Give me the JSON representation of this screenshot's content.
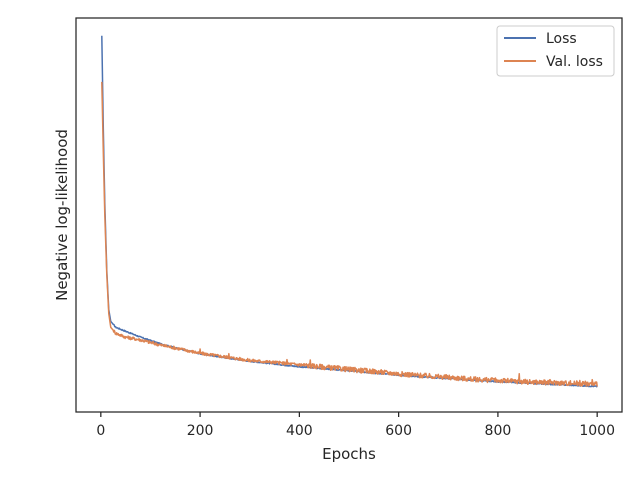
{
  "chart_data": {
    "type": "line",
    "title": "",
    "xlabel": "Epochs",
    "ylabel": "Negative log-likelihood",
    "xlim": [
      -50,
      1050
    ],
    "ylim": [
      0.0,
      1.0
    ],
    "y_tick_labels_shown": false,
    "x_ticks": [
      0,
      200,
      400,
      600,
      800,
      1000
    ],
    "grid": false,
    "legend_position": "top-right",
    "series": [
      {
        "name": "Loss",
        "color": "#4c72b0",
        "points": [
          [
            2,
            0.955
          ],
          [
            5,
            0.72
          ],
          [
            8,
            0.53
          ],
          [
            12,
            0.36
          ],
          [
            16,
            0.26
          ],
          [
            20,
            0.23
          ],
          [
            30,
            0.215
          ],
          [
            50,
            0.205
          ],
          [
            80,
            0.19
          ],
          [
            120,
            0.173
          ],
          [
            160,
            0.16
          ],
          [
            200,
            0.148
          ],
          [
            250,
            0.138
          ],
          [
            300,
            0.129
          ],
          [
            350,
            0.122
          ],
          [
            400,
            0.115
          ],
          [
            450,
            0.11
          ],
          [
            500,
            0.105
          ],
          [
            550,
            0.099
          ],
          [
            600,
            0.094
          ],
          [
            650,
            0.089
          ],
          [
            700,
            0.085
          ],
          [
            750,
            0.081
          ],
          [
            800,
            0.077
          ],
          [
            850,
            0.074
          ],
          [
            900,
            0.071
          ],
          [
            950,
            0.068
          ],
          [
            1000,
            0.065
          ]
        ],
        "spikes": []
      },
      {
        "name": "Val. loss",
        "color": "#dd8452",
        "points": [
          [
            2,
            0.838
          ],
          [
            5,
            0.66
          ],
          [
            8,
            0.5
          ],
          [
            12,
            0.35
          ],
          [
            16,
            0.25
          ],
          [
            20,
            0.215
          ],
          [
            30,
            0.2
          ],
          [
            50,
            0.19
          ],
          [
            80,
            0.183
          ],
          [
            120,
            0.17
          ],
          [
            160,
            0.16
          ],
          [
            200,
            0.149
          ],
          [
            250,
            0.14
          ],
          [
            300,
            0.131
          ],
          [
            350,
            0.126
          ],
          [
            400,
            0.12
          ],
          [
            450,
            0.114
          ],
          [
            500,
            0.108
          ],
          [
            550,
            0.103
          ],
          [
            600,
            0.097
          ],
          [
            650,
            0.092
          ],
          [
            700,
            0.088
          ],
          [
            750,
            0.083
          ],
          [
            800,
            0.08
          ],
          [
            850,
            0.077
          ],
          [
            900,
            0.075
          ],
          [
            950,
            0.073
          ],
          [
            1000,
            0.071
          ]
        ],
        "spikes": [
          [
            200,
            0.16
          ],
          [
            258,
            0.148
          ],
          [
            375,
            0.133
          ],
          [
            422,
            0.132
          ],
          [
            512,
            0.113
          ],
          [
            575,
            0.105
          ],
          [
            640,
            0.094
          ],
          [
            790,
            0.085
          ],
          [
            843,
            0.097
          ],
          [
            905,
            0.082
          ],
          [
            965,
            0.08
          ],
          [
            990,
            0.082
          ]
        ]
      }
    ]
  }
}
